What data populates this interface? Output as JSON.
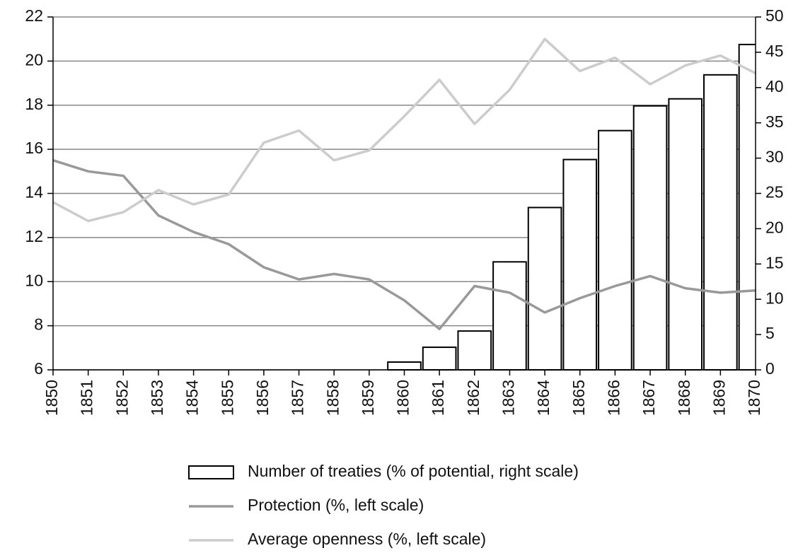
{
  "chart_data": {
    "type": "combo",
    "categories": [
      "1850",
      "1851",
      "1852",
      "1853",
      "1854",
      "1855",
      "1856",
      "1857",
      "1858",
      "1859",
      "1860",
      "1861",
      "1862",
      "1863",
      "1864",
      "1865",
      "1866",
      "1867",
      "1868",
      "1869",
      "1870"
    ],
    "series": [
      {
        "name": "Number of treaties (% of potential, right scale)",
        "type": "bar",
        "axis": "y2",
        "color": "#ffffff",
        "values": [
          0,
          0,
          0,
          0,
          0,
          0,
          0,
          0,
          0,
          0,
          1.1,
          3.2,
          5.5,
          15.3,
          23,
          29.8,
          33.9,
          37.4,
          38.4,
          41.8,
          46.1
        ]
      },
      {
        "name": "Protection (%, left scale)",
        "type": "line",
        "color": "#999999",
        "values": [
          15.5,
          15.0,
          14.8,
          13.0,
          12.25,
          11.7,
          10.65,
          10.1,
          10.35,
          10.1,
          9.15,
          7.85,
          9.8,
          9.5,
          8.6,
          9.25,
          9.8,
          10.25,
          9.7,
          9.5,
          9.6
        ]
      },
      {
        "name": "Average openness (%, left scale)",
        "type": "line",
        "color": "#cccccc",
        "values": [
          13.6,
          12.75,
          13.15,
          14.15,
          13.5,
          13.95,
          16.3,
          16.85,
          15.5,
          15.95,
          17.5,
          19.15,
          17.15,
          18.7,
          21.0,
          19.55,
          20.15,
          18.95,
          19.8,
          20.25,
          19.45
        ]
      }
    ],
    "ylim": [
      6,
      22
    ],
    "yticks": [
      6,
      8,
      10,
      12,
      14,
      16,
      18,
      20,
      22
    ],
    "y2lim": [
      0,
      50
    ],
    "y2ticks": [
      0,
      5,
      10,
      15,
      20,
      25,
      30,
      35,
      40,
      45,
      50
    ],
    "grid": true
  }
}
